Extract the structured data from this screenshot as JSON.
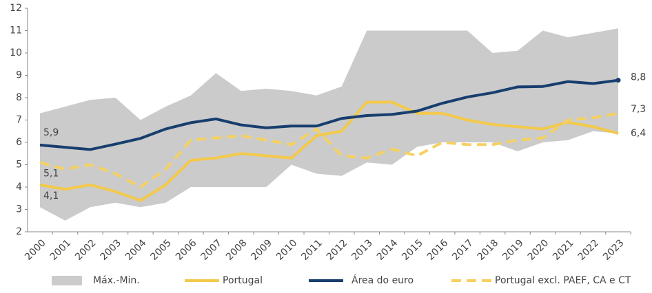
{
  "chart_data": {
    "type": "line",
    "categories": [
      "2000",
      "2001",
      "2002",
      "2003",
      "2004",
      "2005",
      "2006",
      "2007",
      "2008",
      "2009",
      "2010",
      "2011",
      "2012",
      "2013",
      "2014",
      "2015",
      "2016",
      "2017",
      "2018",
      "2019",
      "2020",
      "2021",
      "2022",
      "2023"
    ],
    "ylim": [
      2,
      12
    ],
    "yticks": [
      2,
      3,
      4,
      5,
      6,
      7,
      8,
      9,
      10,
      11,
      12
    ],
    "band": {
      "name": "Máx.-Min.",
      "color": "#cbcbcb",
      "max": [
        7.3,
        7.6,
        7.9,
        8.0,
        7.0,
        7.6,
        8.1,
        9.1,
        8.3,
        8.4,
        8.3,
        8.1,
        8.5,
        11.0,
        11.0,
        11.0,
        11.0,
        11.0,
        10.0,
        10.1,
        11.0,
        10.7,
        10.9,
        11.1
      ],
      "min": [
        3.1,
        2.5,
        3.1,
        3.3,
        3.1,
        3.3,
        4.0,
        4.0,
        4.0,
        4.0,
        5.0,
        4.6,
        4.5,
        5.1,
        5.0,
        5.8,
        6.0,
        6.0,
        6.0,
        5.6,
        6.0,
        6.1,
        6.5,
        6.4
      ]
    },
    "series": [
      {
        "name": "Portugal",
        "color": "#f3c94b",
        "dash": false,
        "values": [
          4.1,
          3.9,
          4.1,
          3.8,
          3.4,
          4.1,
          5.2,
          5.3,
          5.5,
          5.4,
          5.3,
          6.3,
          6.5,
          7.8,
          7.8,
          7.3,
          7.3,
          7.0,
          6.8,
          6.7,
          6.6,
          6.9,
          6.7,
          6.4
        ],
        "value_labels": [
          "4,1",
          null,
          null,
          null,
          null,
          null,
          null,
          null,
          null,
          null,
          null,
          null,
          null,
          null,
          null,
          null,
          null,
          null,
          null,
          null,
          null,
          null,
          null,
          "6,4"
        ]
      },
      {
        "name": "Área do euro",
        "color": "#173e6e",
        "dash": false,
        "values": [
          5.88,
          5.78,
          5.68,
          5.92,
          6.18,
          6.6,
          6.88,
          7.05,
          6.78,
          6.65,
          6.73,
          6.73,
          7.07,
          7.2,
          7.25,
          7.4,
          7.75,
          8.03,
          8.22,
          8.48,
          8.5,
          8.72,
          8.63,
          8.78
        ],
        "value_labels": [
          "5,9",
          null,
          null,
          null,
          null,
          null,
          null,
          null,
          null,
          null,
          null,
          null,
          null,
          null,
          null,
          null,
          null,
          null,
          null,
          null,
          null,
          null,
          null,
          "8,8"
        ]
      },
      {
        "name": "Portugal excl. PAEF, CA e CT",
        "color": "#f5d162",
        "dash": true,
        "values": [
          5.1,
          4.8,
          5.0,
          4.6,
          4.0,
          4.8,
          6.1,
          6.2,
          6.3,
          6.1,
          5.9,
          6.6,
          5.4,
          5.3,
          5.7,
          5.4,
          6.0,
          5.9,
          5.9,
          6.1,
          6.2,
          7.0,
          7.1,
          7.3
        ],
        "value_labels": [
          "5,1",
          null,
          null,
          null,
          null,
          null,
          null,
          null,
          null,
          null,
          null,
          null,
          null,
          null,
          null,
          null,
          null,
          null,
          null,
          null,
          null,
          null,
          null,
          "7,3"
        ]
      }
    ]
  }
}
